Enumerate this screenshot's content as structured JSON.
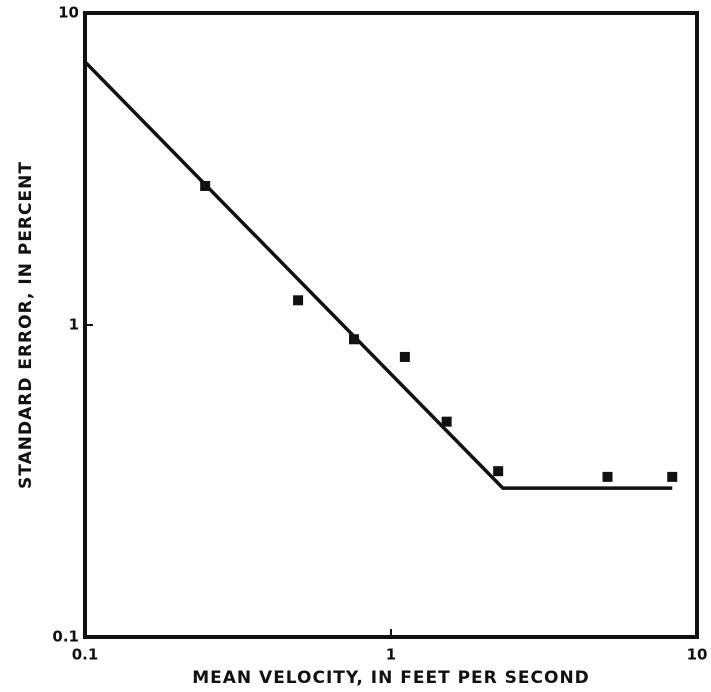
{
  "chart_data": {
    "type": "scatter",
    "xlabel": "MEAN VELOCITY, IN FEET PER SECOND",
    "ylabel": "STANDARD ERROR, IN PERCENT",
    "xscale": "log",
    "yscale": "log",
    "xlim": [
      0.1,
      10
    ],
    "ylim": [
      0.1,
      10
    ],
    "xticks": [
      0.1,
      1,
      10
    ],
    "yticks": [
      0.1,
      1,
      10
    ],
    "series": [
      {
        "type": "scatter",
        "color": "#111111",
        "x": [
          0.247,
          0.497,
          0.757,
          1.11,
          1.52,
          2.24,
          5.1,
          8.3
        ],
        "values": [
          2.79,
          1.2,
          0.9,
          0.79,
          0.49,
          0.34,
          0.326,
          0.326
        ]
      },
      {
        "type": "line",
        "color": "#111111",
        "x": [
          0.1,
          2.32,
          8.3
        ],
        "values": [
          6.97,
          0.3,
          0.3
        ]
      }
    ]
  }
}
